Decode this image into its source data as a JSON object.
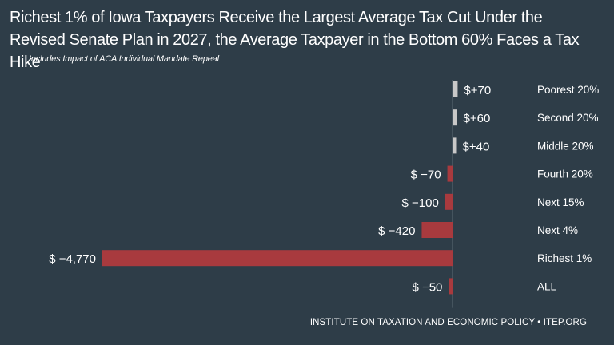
{
  "title_line1": "Richest 1% of Iowa Taxpayers Receive the Largest Average Tax Cut Under the",
  "title_line2": "Revised Senate Plan in 2027, the Average Taxpayer in the Bottom 60% Faces a Tax Hike",
  "subtitle": "Includes Impact of ACA Individual Mandate Repeal",
  "footer": "INSTITUTE ON TAXATION AND ECONOMIC POLICY • ITEP.ORG",
  "colors": {
    "background": "#2e3d48",
    "positive_bar": "#c8c8c8",
    "negative_bar": "#a83a3e",
    "text": "#ffffff"
  },
  "chart_data": {
    "type": "bar",
    "orientation": "horizontal",
    "categories": [
      "Poorest 20%",
      "Second 20%",
      "Middle 20%",
      "Fourth 20%",
      "Next 15%",
      "Next 4%",
      "Richest 1%",
      "ALL"
    ],
    "values": [
      70,
      60,
      40,
      -70,
      -100,
      -420,
      -4770,
      -50
    ],
    "value_labels": [
      "$+70",
      "$+60",
      "$+40",
      "$ −70",
      "$ −100",
      "$ −420",
      "$ −4,770",
      "$ −50"
    ],
    "xlim": [
      -5000,
      100
    ],
    "grid": false,
    "legend": "none"
  }
}
